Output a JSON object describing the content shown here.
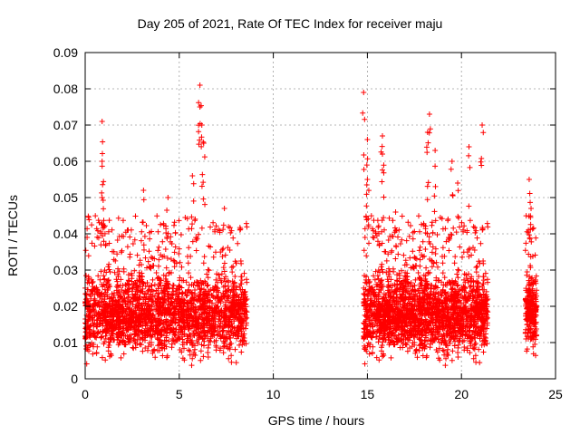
{
  "chart_data": {
    "type": "scatter",
    "title": "Day 205 of 2021, Rate Of TEC Index for receiver maju",
    "xlabel": "GPS time / hours",
    "ylabel": "ROTI / TECUs",
    "xlim": [
      0,
      25
    ],
    "ylim": [
      0,
      0.09
    ],
    "xticks": [
      0,
      5,
      10,
      15,
      20,
      25
    ],
    "xtick_labels": [
      "0",
      "5",
      "10",
      "15",
      "20",
      "25"
    ],
    "yticks": [
      0,
      0.01,
      0.02,
      0.03,
      0.04,
      0.05,
      0.06,
      0.07,
      0.08,
      0.09
    ],
    "ytick_labels": [
      "0",
      "0.01",
      "0.02",
      "0.03",
      "0.04",
      "0.05",
      "0.06",
      "0.07",
      "0.08",
      "0.09"
    ],
    "grid": true,
    "marker": "+",
    "color": "#ff0000",
    "segments": [
      {
        "x_start": 0.0,
        "x_end": 8.6,
        "y_min": 0.003,
        "y_typical_max": 0.03
      },
      {
        "x_start": 14.8,
        "x_end": 21.4,
        "y_min": 0.003,
        "y_typical_max": 0.03
      },
      {
        "x_start": 23.4,
        "x_end": 24.0,
        "y_min": 0.005,
        "y_typical_max": 0.03
      }
    ],
    "peaks": [
      {
        "x": 6.1,
        "y": 0.081
      },
      {
        "x": 14.8,
        "y": 0.079
      },
      {
        "x": 6.1,
        "y": 0.075
      },
      {
        "x": 18.3,
        "y": 0.073
      },
      {
        "x": 0.9,
        "y": 0.071
      },
      {
        "x": 21.1,
        "y": 0.07
      },
      {
        "x": 6.2,
        "y": 0.07
      },
      {
        "x": 18.2,
        "y": 0.068
      },
      {
        "x": 15.8,
        "y": 0.067
      },
      {
        "x": 15.0,
        "y": 0.066
      },
      {
        "x": 6.3,
        "y": 0.065
      },
      {
        "x": 20.4,
        "y": 0.064
      },
      {
        "x": 18.6,
        "y": 0.063
      },
      {
        "x": 15.8,
        "y": 0.062
      },
      {
        "x": 0.9,
        "y": 0.06
      },
      {
        "x": 19.5,
        "y": 0.06
      },
      {
        "x": 5.7,
        "y": 0.056
      },
      {
        "x": 23.6,
        "y": 0.055
      },
      {
        "x": 15.0,
        "y": 0.055
      },
      {
        "x": 19.8,
        "y": 0.054
      },
      {
        "x": 3.1,
        "y": 0.052
      },
      {
        "x": 4.4,
        "y": 0.05
      },
      {
        "x": 0.9,
        "y": 0.05
      },
      {
        "x": 16.5,
        "y": 0.046
      },
      {
        "x": 23.7,
        "y": 0.047
      },
      {
        "x": 7.4,
        "y": 0.047
      }
    ]
  }
}
